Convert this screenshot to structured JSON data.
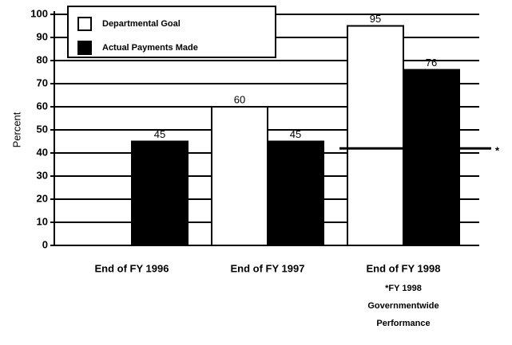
{
  "chart_data": {
    "type": "bar",
    "y_label": "Percent",
    "categories": [
      "End of FY 1996",
      "End of FY 1997",
      "End of FY 1998"
    ],
    "series": [
      {
        "name": "Departmental Goal",
        "color": "#ffffff",
        "values": [
          null,
          60,
          95
        ]
      },
      {
        "name": "Actual Payments Made",
        "color": "#000000",
        "values": [
          45,
          45,
          76
        ]
      }
    ],
    "ylim": [
      0,
      100
    ],
    "yticks": [
      0,
      10,
      20,
      30,
      40,
      50,
      60,
      70,
      80,
      90,
      100
    ],
    "grid": true,
    "legend": "upper left",
    "reference_line": {
      "value": 42,
      "marker": "*",
      "annotation": [
        "*FY 1998",
        "Governmentwide",
        "Performance"
      ]
    }
  }
}
